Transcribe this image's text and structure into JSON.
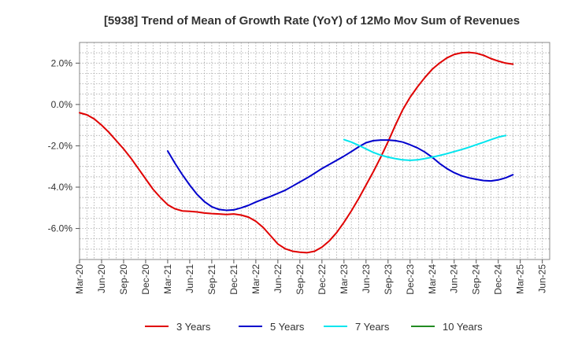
{
  "chart_data": {
    "type": "line",
    "title": "[5938]  Trend of Mean of Growth Rate (YoY) of 12Mo Mov Sum of Revenues",
    "xlabel": "",
    "ylabel": "",
    "ylim": [
      -7.5,
      3.0
    ],
    "y_ticks": [
      2.0,
      0.0,
      -2.0,
      -4.0,
      -6.0
    ],
    "y_tick_labels": [
      "2.0%",
      "0.0%",
      "-2.0%",
      "-4.0%",
      "-6.0%"
    ],
    "x_tick_labels": [
      "Mar-20",
      "Jun-20",
      "Sep-20",
      "Dec-20",
      "Mar-21",
      "Jun-21",
      "Sep-21",
      "Dec-21",
      "Mar-22",
      "Jun-22",
      "Sep-22",
      "Dec-22",
      "Mar-23",
      "Jun-23",
      "Sep-23",
      "Dec-23",
      "Mar-24",
      "Jun-24",
      "Sep-24",
      "Dec-24",
      "Mar-25",
      "Jun-25"
    ],
    "x_start": "Mar-20",
    "months_count": 64,
    "grid": true,
    "legend_position": "bottom",
    "series": [
      {
        "name": "3 Years",
        "color": "#e00000",
        "start_index": 0,
        "values": [
          -0.4,
          -0.5,
          -0.7,
          -1.0,
          -1.35,
          -1.75,
          -2.15,
          -2.6,
          -3.1,
          -3.6,
          -4.1,
          -4.5,
          -4.85,
          -5.05,
          -5.15,
          -5.17,
          -5.2,
          -5.25,
          -5.28,
          -5.3,
          -5.32,
          -5.3,
          -5.35,
          -5.45,
          -5.65,
          -5.95,
          -6.35,
          -6.75,
          -6.98,
          -7.1,
          -7.15,
          -7.17,
          -7.1,
          -6.9,
          -6.6,
          -6.2,
          -5.7,
          -5.15,
          -4.55,
          -3.9,
          -3.25,
          -2.55,
          -1.8,
          -1.0,
          -0.25,
          0.35,
          0.85,
          1.3,
          1.7,
          2.0,
          2.25,
          2.42,
          2.5,
          2.52,
          2.48,
          2.38,
          2.22,
          2.1,
          2.0,
          1.95
        ]
      },
      {
        "name": "5 Years",
        "color": "#0000cc",
        "start_index": 12,
        "values": [
          -2.25,
          -2.85,
          -3.4,
          -3.9,
          -4.35,
          -4.7,
          -4.95,
          -5.08,
          -5.12,
          -5.1,
          -5.0,
          -4.88,
          -4.72,
          -4.58,
          -4.45,
          -4.3,
          -4.15,
          -3.95,
          -3.75,
          -3.55,
          -3.33,
          -3.1,
          -2.9,
          -2.7,
          -2.5,
          -2.28,
          -2.05,
          -1.85,
          -1.75,
          -1.72,
          -1.72,
          -1.75,
          -1.82,
          -1.95,
          -2.1,
          -2.3,
          -2.55,
          -2.85,
          -3.1,
          -3.3,
          -3.45,
          -3.55,
          -3.62,
          -3.68,
          -3.7,
          -3.65,
          -3.55,
          -3.4
        ]
      },
      {
        "name": "7 Years",
        "color": "#00e5ee",
        "start_index": 36,
        "values": [
          -1.7,
          -1.82,
          -1.98,
          -2.15,
          -2.32,
          -2.45,
          -2.55,
          -2.62,
          -2.68,
          -2.7,
          -2.68,
          -2.62,
          -2.55,
          -2.47,
          -2.38,
          -2.28,
          -2.18,
          -2.07,
          -1.95,
          -1.83,
          -1.7,
          -1.58,
          -1.5
        ]
      },
      {
        "name": "10 Years",
        "color": "#228b22",
        "start_index": 0,
        "values": []
      }
    ]
  }
}
